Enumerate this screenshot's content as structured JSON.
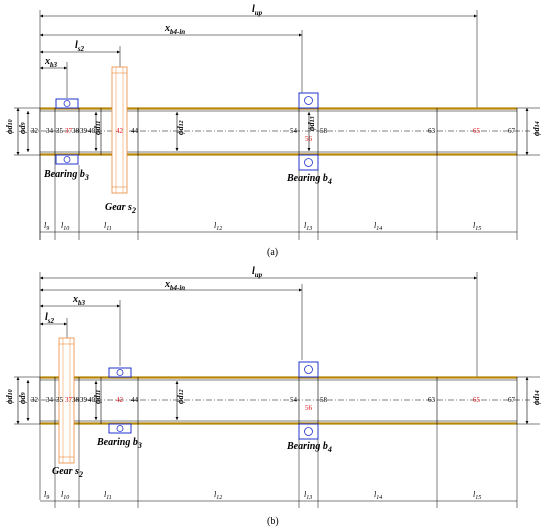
{
  "figure_a": {
    "caption": "(a)",
    "top_dims": {
      "l_up": "l",
      "l_up_sub": "up",
      "x_b4_in": "x",
      "x_b4_in_sub": "b4-in",
      "l_s2": "l",
      "l_s2_sub": "s2",
      "x_b3": "x",
      "x_b3_sub": "b3"
    },
    "diam_left": [
      "ϕd",
      "ϕd"
    ],
    "diam_left_sub": [
      "10",
      "9"
    ],
    "diam_mid": [
      "ϕd",
      "ϕd",
      "ϕd"
    ],
    "diam_mid_sub": [
      "11",
      "12",
      "13"
    ],
    "diam_right": "ϕd",
    "diam_right_sub": "14",
    "node_labels_black": [
      "32",
      "34",
      "35",
      "38",
      "39",
      "40",
      "44",
      "54",
      "58",
      "63",
      "67"
    ],
    "node_labels_red": [
      "37",
      "42",
      "56",
      "65"
    ],
    "bearing_b3": {
      "text": "Bearing b",
      "sub": "3"
    },
    "bearing_b4": {
      "text": "Bearing b",
      "sub": "4"
    },
    "gear_s2": {
      "text": "Gear s",
      "sub": "2"
    },
    "bottom_dims": [
      "l9",
      "l10",
      "l11",
      "l12",
      "l13",
      "l14",
      "l15"
    ]
  },
  "figure_b": {
    "caption": "(b)",
    "top_dims": {
      "l_up": "l",
      "l_up_sub": "up",
      "x_b4_in": "x",
      "x_b4_in_sub": "b4-in",
      "x_b3": "x",
      "x_b3_sub": "b3",
      "l_s2": "l",
      "l_s2_sub": "s2"
    },
    "diam_left": [
      "ϕd",
      "ϕd"
    ],
    "diam_left_sub": [
      "10",
      "9"
    ],
    "diam_mid": [
      "ϕd",
      "ϕd"
    ],
    "diam_mid_sub": [
      "11",
      "12"
    ],
    "diam_right": "ϕd",
    "diam_right_sub": "14",
    "node_labels_black": [
      "32",
      "34",
      "35",
      "38",
      "39",
      "40",
      "44",
      "54",
      "58",
      "63",
      "67"
    ],
    "node_labels_red": [
      "37",
      "42",
      "56",
      "65"
    ],
    "bearing_b3": {
      "text": "Bearing b",
      "sub": "3"
    },
    "bearing_b4": {
      "text": "Bearing b",
      "sub": "4"
    },
    "gear_s2": {
      "text": "Gear s",
      "sub": "2"
    },
    "bottom_dims": [
      "l9",
      "l10",
      "l11",
      "l12",
      "l13",
      "l14",
      "l15"
    ]
  },
  "colors": {
    "shaft": "#b8860b",
    "gear": "#e8893a",
    "bearing": "#2233cc",
    "red_label": "#d11111"
  }
}
